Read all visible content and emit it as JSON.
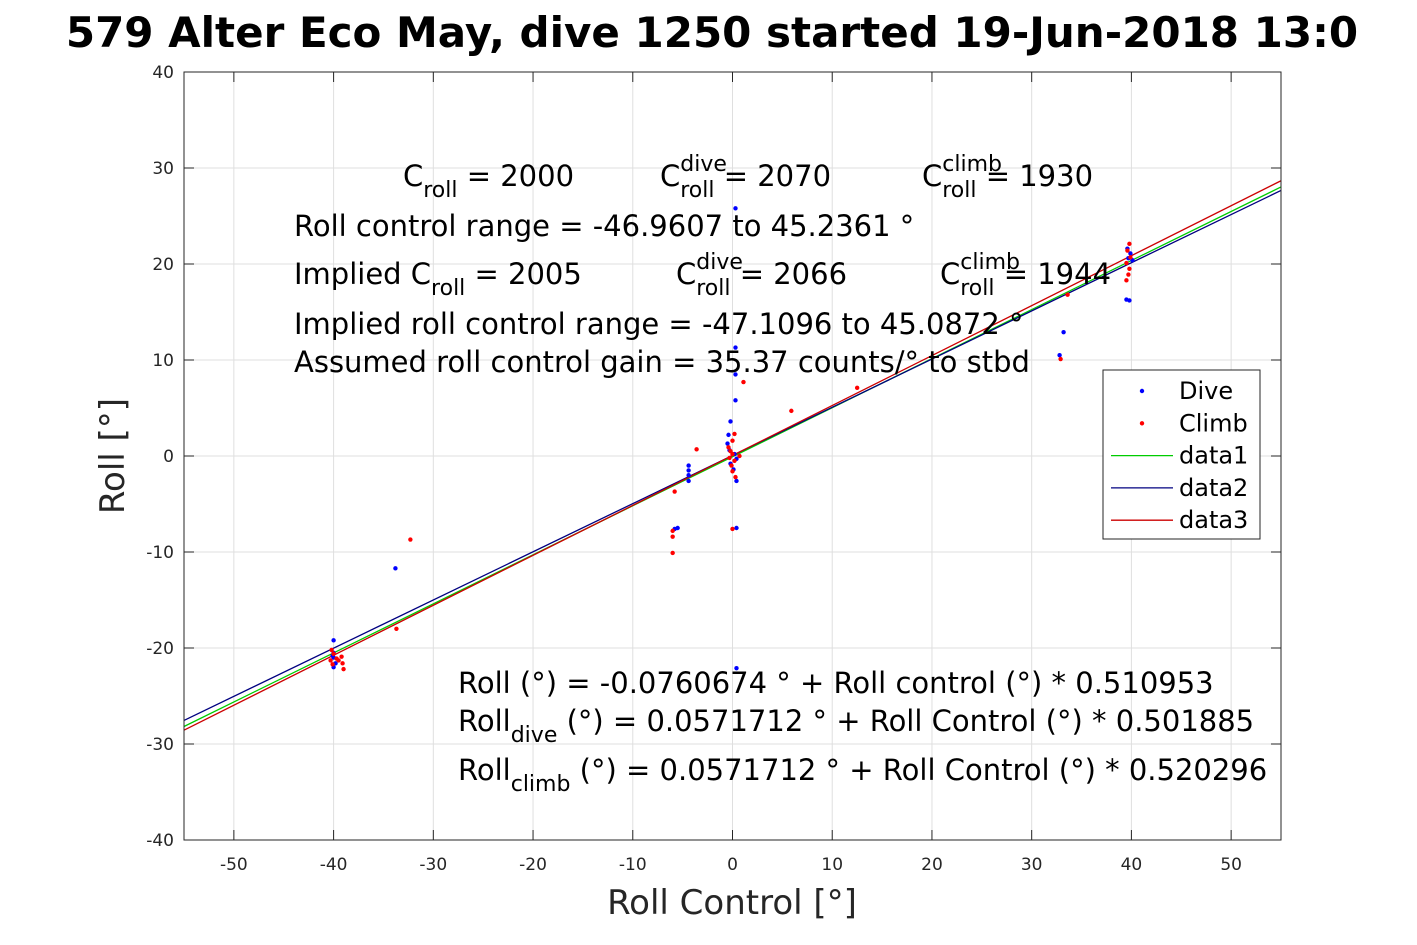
{
  "chart_data": {
    "type": "scatter",
    "title": "579 Alter Eco May, dive 1250 started 19-Jun-2018 13:0",
    "xlabel": "Roll Control [°]",
    "ylabel": "Roll [°]",
    "xlim": [
      -55,
      55
    ],
    "ylim": [
      -40,
      40
    ],
    "xticks": [
      -50,
      -40,
      -30,
      -20,
      -10,
      0,
      10,
      20,
      30,
      40,
      50
    ],
    "yticks": [
      -40,
      -30,
      -20,
      -10,
      0,
      10,
      20,
      30,
      40
    ],
    "grid": true,
    "legend": {
      "placement": "right",
      "entries": [
        {
          "label": "Dive",
          "kind": "marker",
          "color": "#0000ff"
        },
        {
          "label": "Climb",
          "kind": "marker",
          "color": "#ff0000"
        },
        {
          "label": "data1",
          "kind": "line",
          "color": "#00cc00"
        },
        {
          "label": "data2",
          "kind": "line",
          "color": "#000080"
        },
        {
          "label": "data3",
          "kind": "line",
          "color": "#cc0000"
        }
      ]
    },
    "series": [
      {
        "name": "Dive",
        "kind": "scatter",
        "color": "#0000ff",
        "points": [
          [
            -40,
            -19.2
          ],
          [
            -40,
            -20.5
          ],
          [
            -40,
            -21.0
          ],
          [
            -39.8,
            -21.6
          ],
          [
            -40,
            -22.0
          ],
          [
            -40.1,
            -20.8
          ],
          [
            -33.8,
            -11.7
          ],
          [
            -5.5,
            -7.5
          ],
          [
            -5.8,
            -7.6
          ],
          [
            -4.4,
            -1.0
          ],
          [
            -4.4,
            -1.5
          ],
          [
            -4.4,
            -2.0
          ],
          [
            -4.4,
            -2.6
          ],
          [
            0.3,
            25.8
          ],
          [
            0.3,
            11.3
          ],
          [
            0.3,
            8.5
          ],
          [
            0.3,
            5.8
          ],
          [
            -0.2,
            3.6
          ],
          [
            -0.4,
            2.2
          ],
          [
            -0.5,
            1.3
          ],
          [
            -0.3,
            0.6
          ],
          [
            0.2,
            0.2
          ],
          [
            0.4,
            -0.3
          ],
          [
            -0.2,
            -0.8
          ],
          [
            0.1,
            -1.4
          ],
          [
            0.4,
            -2.6
          ],
          [
            0.4,
            -7.5
          ],
          [
            0.4,
            -22.1
          ],
          [
            32.8,
            10.5
          ],
          [
            33.2,
            12.9
          ],
          [
            39.5,
            16.3
          ],
          [
            39.8,
            16.2
          ],
          [
            39.7,
            20.6
          ],
          [
            39.9,
            21.1
          ],
          [
            39.6,
            21.6
          ],
          [
            40.1,
            20.4
          ]
        ]
      },
      {
        "name": "Climb",
        "kind": "scatter",
        "color": "#ff0000",
        "points": [
          [
            -40.2,
            -20.2
          ],
          [
            -40.0,
            -20.6
          ],
          [
            -39.7,
            -21.1
          ],
          [
            -40.3,
            -21.3
          ],
          [
            -40.1,
            -21.7
          ],
          [
            -39.5,
            -21.3
          ],
          [
            -39.1,
            -21.6
          ],
          [
            -39.0,
            -22.2
          ],
          [
            -39.2,
            -20.9
          ],
          [
            -33.7,
            -18.0
          ],
          [
            -32.3,
            -8.7
          ],
          [
            -6.0,
            -7.8
          ],
          [
            -6.0,
            -8.4
          ],
          [
            -6.0,
            -10.1
          ],
          [
            -5.8,
            -3.7
          ],
          [
            -3.6,
            0.7
          ],
          [
            -0.4,
            0.9
          ],
          [
            -0.2,
            0.5
          ],
          [
            0.0,
            0.2
          ],
          [
            -0.3,
            -0.2
          ],
          [
            0.2,
            -0.5
          ],
          [
            -0.1,
            -1.0
          ],
          [
            0.0,
            -1.6
          ],
          [
            0.3,
            -2.2
          ],
          [
            0.0,
            1.6
          ],
          [
            0.2,
            2.3
          ],
          [
            0.0,
            -7.6
          ],
          [
            1.1,
            7.7
          ],
          [
            0.7,
            0.0
          ],
          [
            5.9,
            4.7
          ],
          [
            12.5,
            7.1
          ],
          [
            33.6,
            16.8
          ],
          [
            32.9,
            10.1
          ],
          [
            39.5,
            18.3
          ],
          [
            39.7,
            18.9
          ],
          [
            39.8,
            19.5
          ],
          [
            39.5,
            20.1
          ],
          [
            39.9,
            20.7
          ],
          [
            39.6,
            21.4
          ],
          [
            39.8,
            22.1
          ]
        ]
      },
      {
        "name": "data1",
        "kind": "line",
        "color": "#00cc00",
        "x": [
          -55,
          55
        ],
        "y": [
          -28.178,
          28.026
        ]
      },
      {
        "name": "data2",
        "kind": "line",
        "color": "#000080",
        "x": [
          -55,
          55
        ],
        "y": [
          -27.546,
          27.661
        ]
      },
      {
        "name": "data3",
        "kind": "line",
        "color": "#cc0000",
        "x": [
          -55,
          55
        ],
        "y": [
          -28.559,
          28.673
        ]
      }
    ],
    "annotations": {
      "c_row": [
        {
          "base": "C",
          "sub": "roll",
          "rest": " = 2000"
        },
        {
          "base": "C",
          "sup": "dive",
          "sub": "roll",
          "rest": " = 2070"
        },
        {
          "base": "C",
          "sup": "climb",
          "sub": "roll",
          "rest": " = 1930"
        }
      ],
      "range_line": "Roll control range = -46.9607 to 45.2361 °",
      "implied_row": [
        {
          "base": "Implied C",
          "sub": "roll",
          "rest": " = 2005"
        },
        {
          "base": "C",
          "sup": "dive",
          "sub": "roll",
          "rest": " = 2066"
        },
        {
          "base": "C",
          "sup": "climb",
          "sub": "roll",
          "rest": " = 1944"
        }
      ],
      "implied_range_line": "Implied roll control range = -47.1096 to 45.0872 °",
      "gain_line": "Assumed roll control gain = 35.37 counts/° to stbd",
      "fit_line": "Roll (°) = -0.0760674 ° + Roll control (°) * 0.510953",
      "fit_dive": {
        "base": "Roll",
        "sub": "dive",
        "rest": " (°) = 0.0571712 ° + Roll Control (°) * 0.501885"
      },
      "fit_climb": {
        "base": "Roll",
        "sub": "climb",
        "rest": " (°) = 0.0571712 ° + Roll Control (°) * 0.520296"
      }
    }
  }
}
